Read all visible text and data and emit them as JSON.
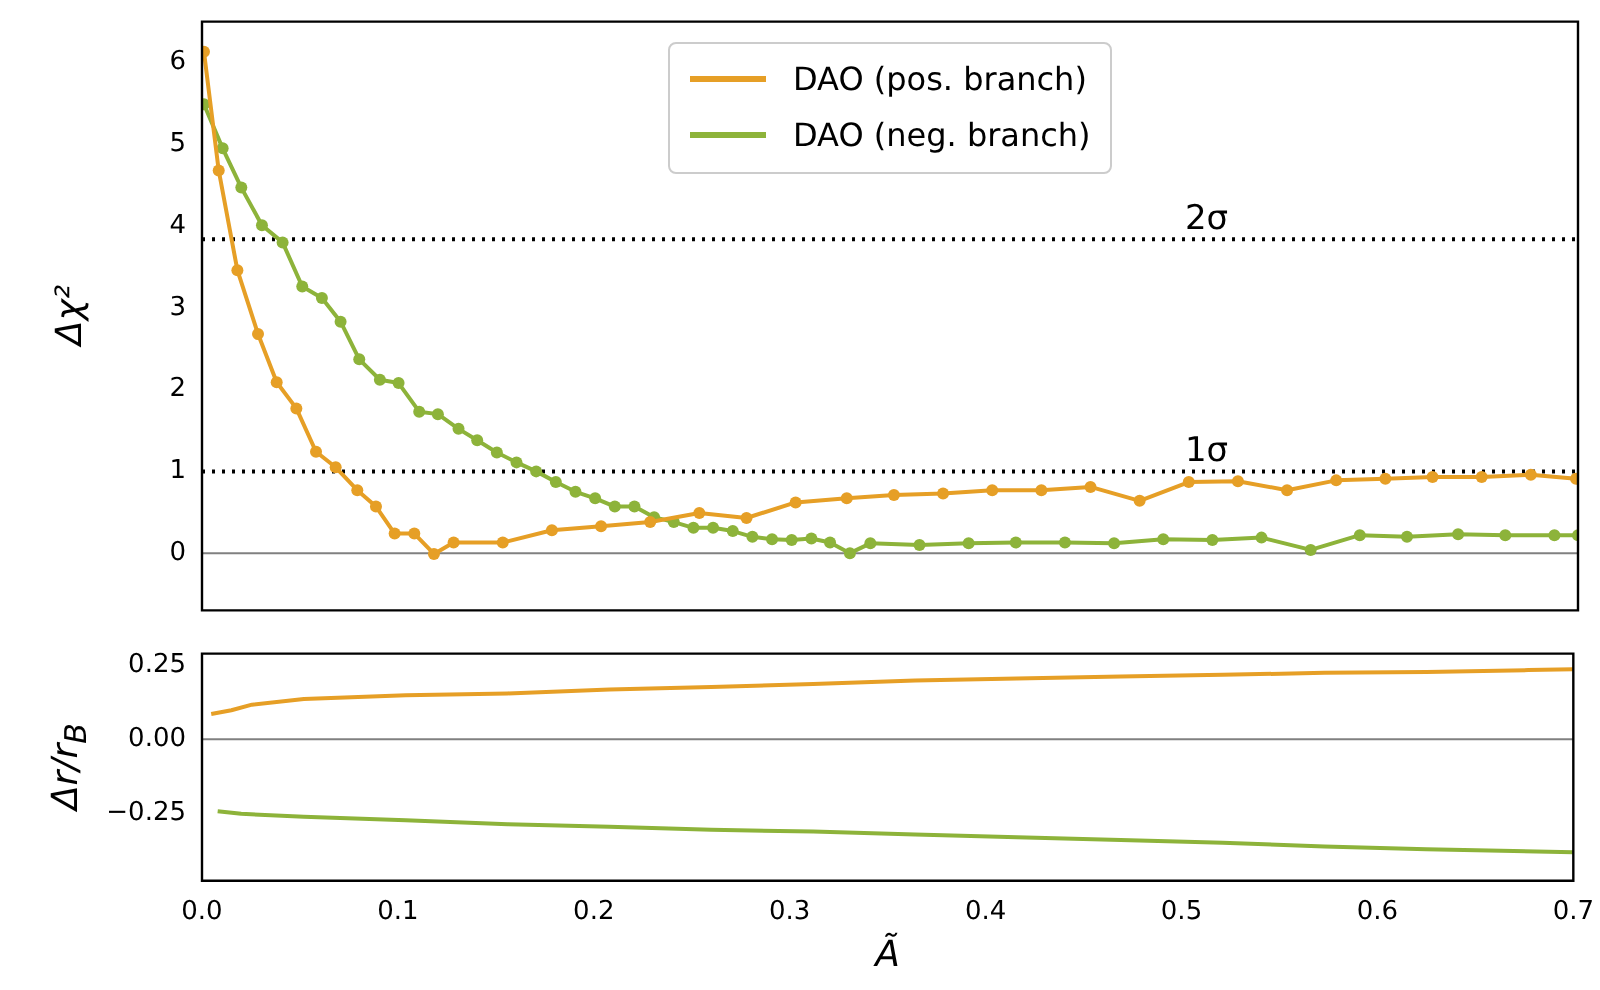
{
  "chart_data": [
    {
      "type": "line",
      "ylabel": "Δχ²",
      "xlim": [
        0,
        0.7
      ],
      "ylim": [
        -0.7,
        6.5
      ],
      "yticks": [
        0,
        1,
        2,
        3,
        4,
        5,
        6
      ],
      "tick_labels": "y",
      "grid": false,
      "legend": "top",
      "marker": "circle",
      "line_style": "solid",
      "ref_lines": [
        {
          "axis": "y",
          "value": 0,
          "color": "#808080",
          "line_style": "solid"
        },
        {
          "axis": "y",
          "value": 1,
          "label": "1σ",
          "color": "#000000",
          "line_style": "dotted"
        },
        {
          "axis": "y",
          "value": 3.84,
          "label": "2σ",
          "color": "#000000",
          "line_style": "dotted"
        }
      ],
      "series": [
        {
          "name": "DAO (pos. branch)",
          "color": "#e69f26",
          "x": [
            0.001,
            0.0085,
            0.018,
            0.0285,
            0.038,
            0.048,
            0.058,
            0.068,
            0.079,
            0.0885,
            0.098,
            0.108,
            0.118,
            0.128,
            0.153,
            0.178,
            0.203,
            0.228,
            0.253,
            0.277,
            0.302,
            0.328,
            0.352,
            0.377,
            0.402,
            0.427,
            0.452,
            0.477,
            0.502,
            0.527,
            0.552,
            0.577,
            0.602,
            0.626,
            0.651,
            0.676,
            0.699
          ],
          "values": [
            6.13,
            4.68,
            3.46,
            2.68,
            2.09,
            1.77,
            1.24,
            1.05,
            0.77,
            0.57,
            0.24,
            0.24,
            -0.01,
            0.13,
            0.13,
            0.28,
            0.33,
            0.38,
            0.49,
            0.43,
            0.62,
            0.67,
            0.71,
            0.73,
            0.77,
            0.77,
            0.81,
            0.64,
            0.87,
            0.88,
            0.77,
            0.89,
            0.91,
            0.93,
            0.93,
            0.96,
            0.91
          ]
        },
        {
          "name": "DAO (neg. branch)",
          "color": "#8db33a",
          "x": [
            0.001,
            0.0105,
            0.02,
            0.0305,
            0.041,
            0.051,
            0.061,
            0.0705,
            0.08,
            0.0905,
            0.1,
            0.1105,
            0.12,
            0.1305,
            0.14,
            0.15,
            0.16,
            0.17,
            0.18,
            0.19,
            0.2,
            0.21,
            0.22,
            0.23,
            0.24,
            0.25,
            0.26,
            0.27,
            0.28,
            0.29,
            0.3,
            0.31,
            0.3195,
            0.3296,
            0.34,
            0.365,
            0.39,
            0.414,
            0.439,
            0.464,
            0.489,
            0.514,
            0.539,
            0.564,
            0.589,
            0.613,
            0.639,
            0.663,
            0.688,
            0.7
          ],
          "values": [
            5.49,
            4.95,
            4.47,
            4.01,
            3.8,
            3.26,
            3.12,
            2.83,
            2.37,
            2.12,
            2.08,
            1.73,
            1.7,
            1.52,
            1.38,
            1.23,
            1.11,
            1.0,
            0.87,
            0.75,
            0.67,
            0.57,
            0.57,
            0.44,
            0.38,
            0.31,
            0.31,
            0.27,
            0.2,
            0.17,
            0.16,
            0.18,
            0.13,
            0.0,
            0.12,
            0.1,
            0.12,
            0.13,
            0.13,
            0.12,
            0.17,
            0.16,
            0.19,
            0.04,
            0.22,
            0.2,
            0.23,
            0.22,
            0.22,
            0.22
          ]
        }
      ]
    },
    {
      "type": "line",
      "xlabel": "Ã",
      "ylabel": "Δr/r$_{B}$",
      "xlim": [
        0,
        0.7
      ],
      "xticks": [
        {
          "value": 0,
          "label": "0.0"
        },
        0.1,
        0.2,
        0.3,
        0.4,
        0.5,
        0.6,
        0.7
      ],
      "ylim": [
        -0.48,
        0.29
      ],
      "yticks": [
        {
          "value": -0.25,
          "label": "−0.25"
        },
        {
          "value": 0,
          "label": "0.00"
        },
        0.25
      ],
      "grid": false,
      "legend": false,
      "marker": "none",
      "line_style": "solid",
      "ref_lines": [
        {
          "axis": "y",
          "value": 0,
          "color": "#808080",
          "line_style": "solid"
        }
      ],
      "series": [
        {
          "color": "#e69f26",
          "x": [
            0.0047,
            0.015,
            0.0255,
            0.052,
            0.104,
            0.156,
            0.208,
            0.26,
            0.312,
            0.364,
            0.416,
            0.469,
            0.521,
            0.573,
            0.625,
            0.677,
            0.7
          ],
          "values": [
            0.085,
            0.098,
            0.117,
            0.136,
            0.149,
            0.155,
            0.168,
            0.177,
            0.187,
            0.199,
            0.206,
            0.212,
            0.218,
            0.225,
            0.228,
            0.234,
            0.237
          ]
        },
        {
          "color": "#8db33a",
          "x": [
            0.008,
            0.02,
            0.052,
            0.104,
            0.156,
            0.208,
            0.26,
            0.312,
            0.364,
            0.416,
            0.469,
            0.521,
            0.573,
            0.625,
            0.7
          ],
          "values": [
            -0.244,
            -0.253,
            -0.263,
            -0.275,
            -0.288,
            -0.297,
            -0.307,
            -0.313,
            -0.323,
            -0.332,
            -0.342,
            -0.351,
            -0.364,
            -0.373,
            -0.383
          ]
        }
      ]
    }
  ]
}
